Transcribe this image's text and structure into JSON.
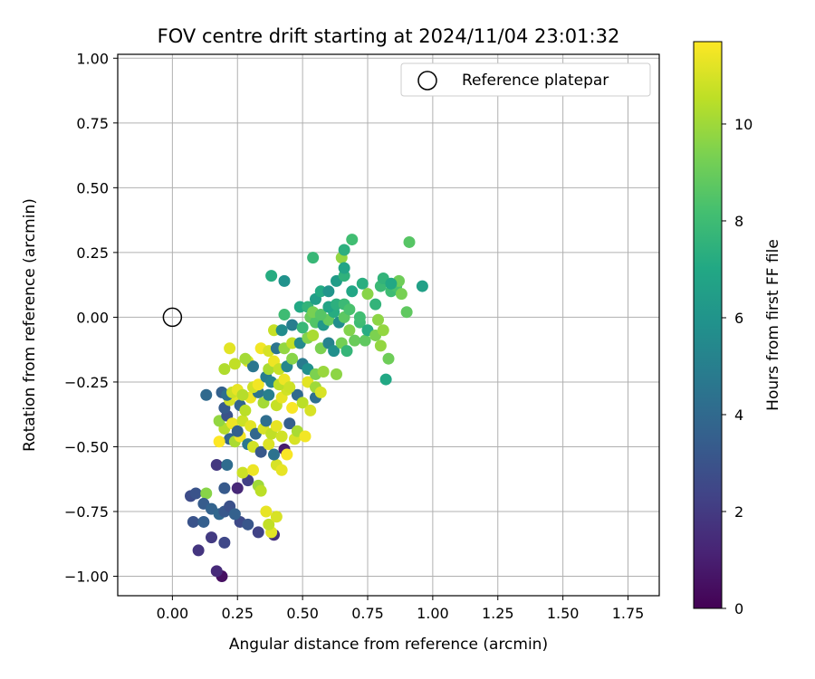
{
  "chart_data": {
    "type": "scatter",
    "title": "FOV centre drift starting at 2024/11/04 23:01:32",
    "xlabel": "Angular distance from reference (arcmin)",
    "ylabel": "Rotation from reference (arcmin)",
    "xlim": [
      -0.21,
      1.87
    ],
    "ylim": [
      -1.075,
      1.015
    ],
    "xticks": [
      0.0,
      0.25,
      0.5,
      0.75,
      1.0,
      1.25,
      1.5,
      1.75
    ],
    "xtick_labels": [
      "0.00",
      "0.25",
      "0.50",
      "0.75",
      "1.00",
      "1.25",
      "1.50",
      "1.75"
    ],
    "yticks": [
      -1.0,
      -0.75,
      -0.5,
      -0.25,
      0.0,
      0.25,
      0.5,
      0.75,
      1.0
    ],
    "ytick_labels": [
      "−1.00",
      "−0.75",
      "−0.50",
      "−0.25",
      "0.00",
      "0.25",
      "0.50",
      "0.75",
      "1.00"
    ],
    "grid": true,
    "legend": {
      "placement": "top-right",
      "entries": [
        "Reference platepar"
      ]
    },
    "reference_point": {
      "x": 0.0,
      "y": 0.0,
      "label": "Reference platepar"
    },
    "colorbar": {
      "label": "Hours from first FF file",
      "min": 0,
      "max": 11.7,
      "ticks": [
        0,
        2,
        4,
        6,
        8,
        10
      ],
      "tick_labels": [
        "0",
        "2",
        "4",
        "6",
        "8",
        "10"
      ],
      "colormap": "viridis"
    },
    "points": [
      [
        0.19,
        -1.0,
        0.5
      ],
      [
        0.17,
        -0.98,
        1.4
      ],
      [
        0.1,
        -0.9,
        1.8
      ],
      [
        0.15,
        -0.85,
        2.0
      ],
      [
        0.2,
        -0.87,
        2.5
      ],
      [
        0.39,
        -0.84,
        1.6
      ],
      [
        0.33,
        -0.83,
        2.3
      ],
      [
        0.38,
        -0.83,
        11.2
      ],
      [
        0.08,
        -0.79,
        3.0
      ],
      [
        0.12,
        -0.79,
        3.5
      ],
      [
        0.26,
        -0.79,
        2.6
      ],
      [
        0.29,
        -0.8,
        3.1
      ],
      [
        0.37,
        -0.8,
        10.6
      ],
      [
        0.4,
        -0.77,
        11.0
      ],
      [
        0.36,
        -0.75,
        11.3
      ],
      [
        0.07,
        -0.69,
        2.7
      ],
      [
        0.09,
        -0.68,
        3.0
      ],
      [
        0.13,
        -0.68,
        9.6
      ],
      [
        0.12,
        -0.72,
        3.4
      ],
      [
        0.15,
        -0.74,
        3.7
      ],
      [
        0.18,
        -0.76,
        3.9
      ],
      [
        0.2,
        -0.75,
        3.2
      ],
      [
        0.22,
        -0.73,
        2.9
      ],
      [
        0.24,
        -0.76,
        3.6
      ],
      [
        0.2,
        -0.66,
        3.3
      ],
      [
        0.25,
        -0.66,
        1.3
      ],
      [
        0.29,
        -0.63,
        2.2
      ],
      [
        0.33,
        -0.65,
        10.0
      ],
      [
        0.34,
        -0.67,
        10.5
      ],
      [
        0.17,
        -0.57,
        1.9
      ],
      [
        0.21,
        -0.57,
        4.1
      ],
      [
        0.27,
        -0.6,
        10.8
      ],
      [
        0.31,
        -0.59,
        11.4
      ],
      [
        0.4,
        -0.57,
        11.0
      ],
      [
        0.42,
        -0.59,
        11.3
      ],
      [
        0.22,
        -0.47,
        3.8
      ],
      [
        0.24,
        -0.48,
        10.2
      ],
      [
        0.26,
        -0.46,
        11.5
      ],
      [
        0.29,
        -0.49,
        4.6
      ],
      [
        0.31,
        -0.5,
        10.9
      ],
      [
        0.34,
        -0.52,
        3.2
      ],
      [
        0.37,
        -0.49,
        11.1
      ],
      [
        0.39,
        -0.53,
        4.4
      ],
      [
        0.43,
        -0.51,
        0.9
      ],
      [
        0.44,
        -0.53,
        11.6
      ],
      [
        0.47,
        -0.47,
        11.0
      ],
      [
        0.18,
        -0.48,
        11.7
      ],
      [
        0.2,
        -0.43,
        10.4
      ],
      [
        0.18,
        -0.4,
        9.8
      ],
      [
        0.21,
        -0.38,
        3.0
      ],
      [
        0.23,
        -0.41,
        11.4
      ],
      [
        0.25,
        -0.44,
        3.6
      ],
      [
        0.27,
        -0.4,
        10.8
      ],
      [
        0.3,
        -0.42,
        11.2
      ],
      [
        0.32,
        -0.45,
        3.9
      ],
      [
        0.35,
        -0.43,
        11.0
      ],
      [
        0.36,
        -0.4,
        4.2
      ],
      [
        0.38,
        -0.45,
        10.6
      ],
      [
        0.4,
        -0.42,
        11.3
      ],
      [
        0.42,
        -0.46,
        10.9
      ],
      [
        0.45,
        -0.41,
        3.5
      ],
      [
        0.48,
        -0.44,
        10.2
      ],
      [
        0.51,
        -0.46,
        11.5
      ],
      [
        0.2,
        -0.35,
        3.4
      ],
      [
        0.22,
        -0.32,
        10.9
      ],
      [
        0.24,
        -0.3,
        11.2
      ],
      [
        0.26,
        -0.34,
        3.8
      ],
      [
        0.28,
        -0.36,
        10.5
      ],
      [
        0.3,
        -0.31,
        11.4
      ],
      [
        0.33,
        -0.29,
        4.5
      ],
      [
        0.35,
        -0.33,
        10.1
      ],
      [
        0.37,
        -0.3,
        5.0
      ],
      [
        0.4,
        -0.34,
        10.7
      ],
      [
        0.42,
        -0.31,
        11.3
      ],
      [
        0.44,
        -0.28,
        10.9
      ],
      [
        0.46,
        -0.35,
        11.6
      ],
      [
        0.48,
        -0.3,
        4.0
      ],
      [
        0.5,
        -0.33,
        10.5
      ],
      [
        0.53,
        -0.36,
        11.0
      ],
      [
        0.55,
        -0.31,
        4.3
      ],
      [
        0.13,
        -0.3,
        4.0
      ],
      [
        0.19,
        -0.29,
        3.6
      ],
      [
        0.21,
        -0.3,
        4.3
      ],
      [
        0.23,
        -0.29,
        10.8
      ],
      [
        0.25,
        -0.28,
        11.3
      ],
      [
        0.27,
        -0.3,
        10.4
      ],
      [
        0.31,
        -0.27,
        10.9
      ],
      [
        0.33,
        -0.26,
        11.5
      ],
      [
        0.36,
        -0.23,
        4.9
      ],
      [
        0.38,
        -0.25,
        5.2
      ],
      [
        0.41,
        -0.26,
        10.5
      ],
      [
        0.43,
        -0.24,
        11.4
      ],
      [
        0.45,
        -0.27,
        10.8
      ],
      [
        0.52,
        -0.25,
        11.2
      ],
      [
        0.55,
        -0.27,
        10.0
      ],
      [
        0.57,
        -0.29,
        11.0
      ],
      [
        0.2,
        -0.2,
        10.3
      ],
      [
        0.24,
        -0.18,
        10.6
      ],
      [
        0.29,
        -0.17,
        11.1
      ],
      [
        0.31,
        -0.19,
        4.6
      ],
      [
        0.37,
        -0.2,
        10.2
      ],
      [
        0.39,
        -0.17,
        11.4
      ],
      [
        0.41,
        -0.2,
        10.7
      ],
      [
        0.44,
        -0.19,
        5.3
      ],
      [
        0.46,
        -0.16,
        9.6
      ],
      [
        0.5,
        -0.18,
        4.8
      ],
      [
        0.52,
        -0.2,
        5.8
      ],
      [
        0.55,
        -0.22,
        9.4
      ],
      [
        0.58,
        -0.21,
        9.9
      ],
      [
        0.63,
        -0.22,
        9.7
      ],
      [
        0.22,
        -0.12,
        11.2
      ],
      [
        0.28,
        -0.16,
        10.1
      ],
      [
        0.34,
        -0.12,
        11.5
      ],
      [
        0.37,
        -0.13,
        11.0
      ],
      [
        0.4,
        -0.12,
        4.5
      ],
      [
        0.43,
        -0.12,
        9.8
      ],
      [
        0.46,
        -0.1,
        10.6
      ],
      [
        0.49,
        -0.1,
        5.5
      ],
      [
        0.52,
        -0.08,
        9.5
      ],
      [
        0.54,
        -0.07,
        10.2
      ],
      [
        0.57,
        -0.12,
        9.4
      ],
      [
        0.6,
        -0.1,
        5.2
      ],
      [
        0.62,
        -0.13,
        5.8
      ],
      [
        0.65,
        -0.1,
        9.2
      ],
      [
        0.67,
        -0.13,
        7.7
      ],
      [
        0.7,
        -0.09,
        9.0
      ],
      [
        0.74,
        -0.09,
        8.8
      ],
      [
        0.39,
        -0.05,
        10.7
      ],
      [
        0.42,
        -0.05,
        5.6
      ],
      [
        0.46,
        -0.03,
        4.9
      ],
      [
        0.5,
        -0.04,
        7.8
      ],
      [
        0.53,
        0.0,
        9.0
      ],
      [
        0.55,
        -0.02,
        8.5
      ],
      [
        0.58,
        -0.03,
        6.2
      ],
      [
        0.6,
        -0.01,
        8.9
      ],
      [
        0.62,
        0.02,
        7.2
      ],
      [
        0.64,
        -0.02,
        5.7
      ],
      [
        0.66,
        0.0,
        8.7
      ],
      [
        0.68,
        -0.05,
        9.5
      ],
      [
        0.72,
        -0.02,
        8.0
      ],
      [
        0.75,
        -0.05,
        7.2
      ],
      [
        0.78,
        -0.07,
        9.4
      ],
      [
        0.8,
        -0.11,
        9.8
      ],
      [
        0.79,
        -0.01,
        9.7
      ],
      [
        0.81,
        -0.05,
        9.8
      ],
      [
        0.83,
        -0.16,
        9.1
      ],
      [
        0.82,
        -0.24,
        7.0
      ],
      [
        0.43,
        0.01,
        8.0
      ],
      [
        0.49,
        0.04,
        7.0
      ],
      [
        0.52,
        0.04,
        7.6
      ],
      [
        0.54,
        0.02,
        9.3
      ],
      [
        0.57,
        0.01,
        8.6
      ],
      [
        0.6,
        0.04,
        6.8
      ],
      [
        0.63,
        0.05,
        7.4
      ],
      [
        0.66,
        0.05,
        7.9
      ],
      [
        0.68,
        0.03,
        8.3
      ],
      [
        0.72,
        0.0,
        8.1
      ],
      [
        0.78,
        0.05,
        7.6
      ],
      [
        0.8,
        0.12,
        7.9
      ],
      [
        0.84,
        0.1,
        8.0
      ],
      [
        0.86,
        0.12,
        8.3
      ],
      [
        0.87,
        0.14,
        9.1
      ],
      [
        0.88,
        0.09,
        9.3
      ],
      [
        0.9,
        0.02,
        8.8
      ],
      [
        0.55,
        0.07,
        6.5
      ],
      [
        0.57,
        0.1,
        7.1
      ],
      [
        0.6,
        0.1,
        6.0
      ],
      [
        0.63,
        0.14,
        6.4
      ],
      [
        0.66,
        0.16,
        7.5
      ],
      [
        0.69,
        0.1,
        6.9
      ],
      [
        0.73,
        0.13,
        7.3
      ],
      [
        0.75,
        0.09,
        9.6
      ],
      [
        0.81,
        0.15,
        7.6
      ],
      [
        0.84,
        0.13,
        7.0
      ],
      [
        0.96,
        0.12,
        6.6
      ],
      [
        0.38,
        0.16,
        7.2
      ],
      [
        0.43,
        0.14,
        5.9
      ],
      [
        0.54,
        0.23,
        7.8
      ],
      [
        0.65,
        0.23,
        9.8
      ],
      [
        0.66,
        0.19,
        6.8
      ],
      [
        0.66,
        0.26,
        7.4
      ],
      [
        0.69,
        0.3,
        8.1
      ],
      [
        0.91,
        0.29,
        8.6
      ]
    ]
  }
}
